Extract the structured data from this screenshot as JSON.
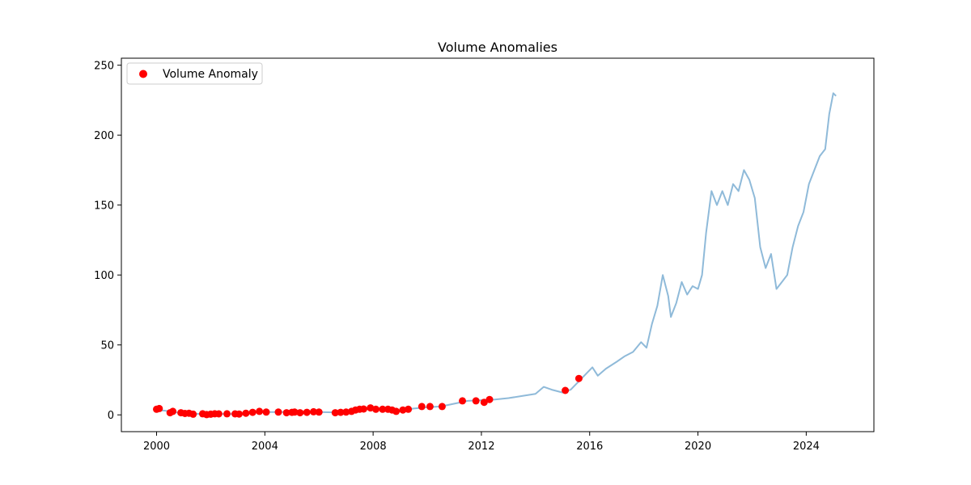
{
  "chart_data": {
    "type": "line",
    "title": "Volume Anomalies",
    "xlabel": "",
    "ylabel": "",
    "xlim": [
      1998.7,
      2026.5
    ],
    "ylim": [
      -12,
      255
    ],
    "x_ticks": [
      2000,
      2004,
      2008,
      2012,
      2016,
      2020,
      2024
    ],
    "x_tick_labels": [
      "2000",
      "2004",
      "2008",
      "2012",
      "2016",
      "2020",
      "2024"
    ],
    "y_ticks": [
      0,
      50,
      100,
      150,
      200,
      250
    ],
    "y_tick_labels": [
      "0",
      "50",
      "100",
      "150",
      "200",
      "250"
    ],
    "grid": false,
    "legend": {
      "position": "top-left",
      "entries": [
        "Volume Anomaly"
      ]
    },
    "colors": {
      "line": "#8fbad9",
      "anomaly": "#ff0000"
    },
    "series": [
      {
        "kind": "line",
        "points": [
          [
            2000.0,
            3.5
          ],
          [
            2000.3,
            3.0
          ],
          [
            2000.6,
            2.0
          ],
          [
            2001.0,
            1.2
          ],
          [
            2001.4,
            0.8
          ],
          [
            2001.8,
            0.6
          ],
          [
            2002.2,
            0.8
          ],
          [
            2002.6,
            0.6
          ],
          [
            2003.0,
            0.7
          ],
          [
            2003.5,
            1.5
          ],
          [
            2004.0,
            2.0
          ],
          [
            2004.5,
            2.0
          ],
          [
            2005.0,
            2.2
          ],
          [
            2005.5,
            2.0
          ],
          [
            2006.0,
            2.0
          ],
          [
            2006.5,
            1.8
          ],
          [
            2007.0,
            2.2
          ],
          [
            2007.5,
            4.0
          ],
          [
            2008.0,
            4.2
          ],
          [
            2008.5,
            3.5
          ],
          [
            2009.0,
            3.0
          ],
          [
            2009.5,
            4.5
          ],
          [
            2010.0,
            5.5
          ],
          [
            2010.5,
            6.0
          ],
          [
            2011.0,
            8.0
          ],
          [
            2011.5,
            10.0
          ],
          [
            2012.0,
            10.5
          ],
          [
            2012.5,
            11.0
          ],
          [
            2013.0,
            12.0
          ],
          [
            2013.5,
            13.5
          ],
          [
            2014.0,
            15.0
          ],
          [
            2014.3,
            20.0
          ],
          [
            2014.6,
            18.0
          ],
          [
            2015.0,
            16.0
          ],
          [
            2015.3,
            18.0
          ],
          [
            2015.6,
            24.0
          ],
          [
            2015.9,
            30.0
          ],
          [
            2016.1,
            34.0
          ],
          [
            2016.3,
            28.0
          ],
          [
            2016.6,
            33.0
          ],
          [
            2017.0,
            38.0
          ],
          [
            2017.3,
            42.0
          ],
          [
            2017.6,
            45.0
          ],
          [
            2017.9,
            52.0
          ],
          [
            2018.1,
            48.0
          ],
          [
            2018.3,
            65.0
          ],
          [
            2018.5,
            78.0
          ],
          [
            2018.7,
            100.0
          ],
          [
            2018.9,
            85.0
          ],
          [
            2019.0,
            70.0
          ],
          [
            2019.2,
            80.0
          ],
          [
            2019.4,
            95.0
          ],
          [
            2019.6,
            86.0
          ],
          [
            2019.8,
            92.0
          ],
          [
            2020.0,
            90.0
          ],
          [
            2020.15,
            100.0
          ],
          [
            2020.3,
            130.0
          ],
          [
            2020.5,
            160.0
          ],
          [
            2020.7,
            150.0
          ],
          [
            2020.9,
            160.0
          ],
          [
            2021.1,
            150.0
          ],
          [
            2021.3,
            165.0
          ],
          [
            2021.5,
            160.0
          ],
          [
            2021.7,
            175.0
          ],
          [
            2021.9,
            168.0
          ],
          [
            2022.1,
            155.0
          ],
          [
            2022.3,
            120.0
          ],
          [
            2022.5,
            105.0
          ],
          [
            2022.7,
            115.0
          ],
          [
            2022.9,
            90.0
          ],
          [
            2023.1,
            95.0
          ],
          [
            2023.3,
            100.0
          ],
          [
            2023.5,
            120.0
          ],
          [
            2023.7,
            135.0
          ],
          [
            2023.9,
            145.0
          ],
          [
            2024.1,
            165.0
          ],
          [
            2024.3,
            175.0
          ],
          [
            2024.5,
            185.0
          ],
          [
            2024.7,
            190.0
          ],
          [
            2024.85,
            215.0
          ],
          [
            2025.0,
            230.0
          ],
          [
            2025.1,
            228.0
          ]
        ]
      },
      {
        "kind": "scatter",
        "name": "Volume Anomaly",
        "points": [
          [
            2000.0,
            4.0
          ],
          [
            2000.1,
            4.5
          ],
          [
            2000.5,
            1.5
          ],
          [
            2000.6,
            2.5
          ],
          [
            2000.9,
            1.5
          ],
          [
            2001.05,
            1.0
          ],
          [
            2001.2,
            1.2
          ],
          [
            2001.35,
            0.5
          ],
          [
            2001.7,
            0.8
          ],
          [
            2001.85,
            0.2
          ],
          [
            2002.0,
            0.5
          ],
          [
            2002.15,
            0.8
          ],
          [
            2002.3,
            0.7
          ],
          [
            2002.6,
            0.8
          ],
          [
            2002.9,
            0.7
          ],
          [
            2003.05,
            0.6
          ],
          [
            2003.3,
            1.2
          ],
          [
            2003.55,
            1.8
          ],
          [
            2003.8,
            2.5
          ],
          [
            2004.05,
            2.0
          ],
          [
            2004.5,
            2.0
          ],
          [
            2004.8,
            1.5
          ],
          [
            2005.0,
            1.8
          ],
          [
            2005.1,
            2.0
          ],
          [
            2005.3,
            1.5
          ],
          [
            2005.55,
            1.8
          ],
          [
            2005.8,
            2.2
          ],
          [
            2006.0,
            2.0
          ],
          [
            2006.6,
            1.5
          ],
          [
            2006.8,
            1.8
          ],
          [
            2007.0,
            2.0
          ],
          [
            2007.2,
            2.5
          ],
          [
            2007.35,
            3.5
          ],
          [
            2007.5,
            4.0
          ],
          [
            2007.65,
            4.2
          ],
          [
            2007.9,
            5.0
          ],
          [
            2008.1,
            4.0
          ],
          [
            2008.35,
            4.0
          ],
          [
            2008.55,
            4.0
          ],
          [
            2008.7,
            3.5
          ],
          [
            2008.85,
            2.5
          ],
          [
            2009.1,
            3.5
          ],
          [
            2009.3,
            4.0
          ],
          [
            2009.8,
            6.0
          ],
          [
            2010.1,
            6.0
          ],
          [
            2010.55,
            6.0
          ],
          [
            2011.3,
            10.0
          ],
          [
            2011.8,
            10.0
          ],
          [
            2012.1,
            9.0
          ],
          [
            2012.3,
            11.0
          ],
          [
            2015.1,
            17.5
          ],
          [
            2015.6,
            26.0
          ]
        ]
      }
    ]
  }
}
